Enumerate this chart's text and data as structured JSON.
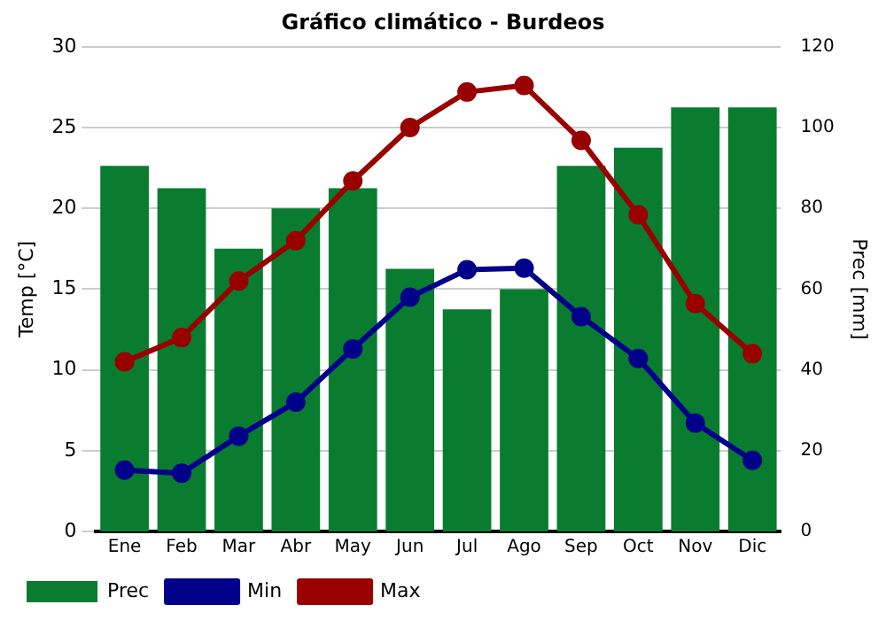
{
  "chart_data": {
    "type": "line",
    "title": "Gráfico climático - Burdeos",
    "ylabel": "Temp [°C]",
    "y2label": "Prec [mm]",
    "categories": [
      "Ene",
      "Feb",
      "Mar",
      "Abr",
      "May",
      "Jun",
      "Jul",
      "Ago",
      "Sep",
      "Oct",
      "Nov",
      "Dic"
    ],
    "series": [
      {
        "name": "Prec",
        "type": "bar",
        "axis": "y2",
        "color": "#097c30",
        "values": [
          90.5,
          85,
          70,
          80,
          85,
          65,
          55,
          60,
          90.5,
          95,
          105,
          105
        ]
      },
      {
        "name": "Min",
        "color": "#00008b",
        "values": [
          3.8,
          3.6,
          5.9,
          8.0,
          11.3,
          14.5,
          16.2,
          16.3,
          13.3,
          10.7,
          6.7,
          4.4
        ]
      },
      {
        "name": "Max",
        "color": "#990000",
        "values": [
          10.5,
          12,
          15.5,
          18,
          21.7,
          25,
          27.2,
          27.6,
          24.2,
          19.6,
          14.1,
          11
        ]
      }
    ],
    "ylim": [
      0,
      30
    ],
    "yticks": [
      0,
      5,
      10,
      15,
      20,
      25,
      30
    ],
    "y2lim": [
      0,
      120
    ],
    "y2ticks": [
      0,
      20,
      40,
      60,
      80,
      100,
      120
    ],
    "grid": "y",
    "legend": "bottom left",
    "marker": "circle",
    "line_style": "solid"
  }
}
